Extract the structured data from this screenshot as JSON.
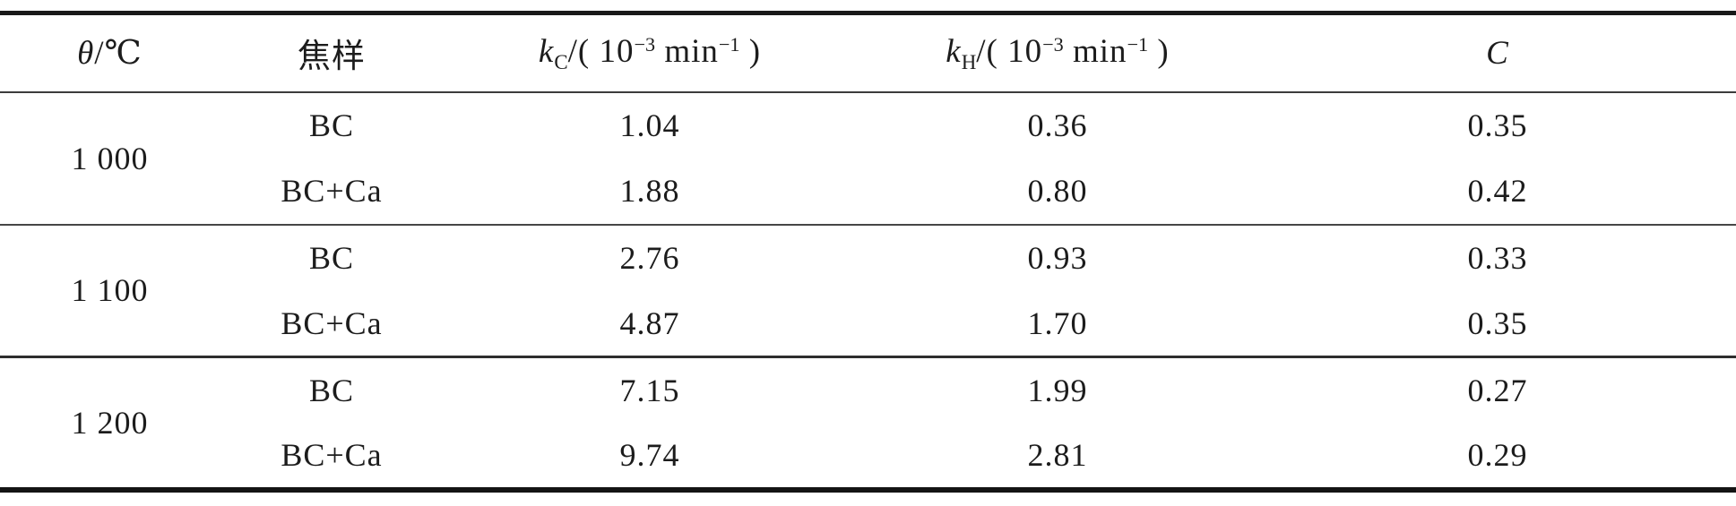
{
  "table": {
    "columns": {
      "temperature": {
        "symbol": "θ",
        "rest": "/℃"
      },
      "sample": "焦样",
      "kc": {
        "symbol": "k",
        "subscript": "C",
        "open": "/( 10",
        "exp1": "−3",
        "unit": " min",
        "exp2": "−1",
        "close": " )"
      },
      "kh": {
        "symbol": "k",
        "subscript": "H",
        "open": "/( 10",
        "exp1": "−3",
        "unit": " min",
        "exp2": "−1",
        "close": " )"
      },
      "c": "C"
    },
    "groups": [
      {
        "temperature": "1 000",
        "rows": [
          {
            "sample": "BC",
            "kc": "1.04",
            "kh": "0.36",
            "c": "0.35"
          },
          {
            "sample": "BC+Ca",
            "kc": "1.88",
            "kh": "0.80",
            "c": "0.42"
          }
        ]
      },
      {
        "temperature": "1 100",
        "rows": [
          {
            "sample": "BC",
            "kc": "2.76",
            "kh": "0.93",
            "c": "0.33"
          },
          {
            "sample": "BC+Ca",
            "kc": "4.87",
            "kh": "1.70",
            "c": "0.35"
          }
        ]
      },
      {
        "temperature": "1 200",
        "rows": [
          {
            "sample": "BC",
            "kc": "7.15",
            "kh": "1.99",
            "c": "0.27"
          },
          {
            "sample": "BC+Ca",
            "kc": "9.74",
            "kh": "2.81",
            "c": "0.29"
          }
        ]
      }
    ]
  }
}
